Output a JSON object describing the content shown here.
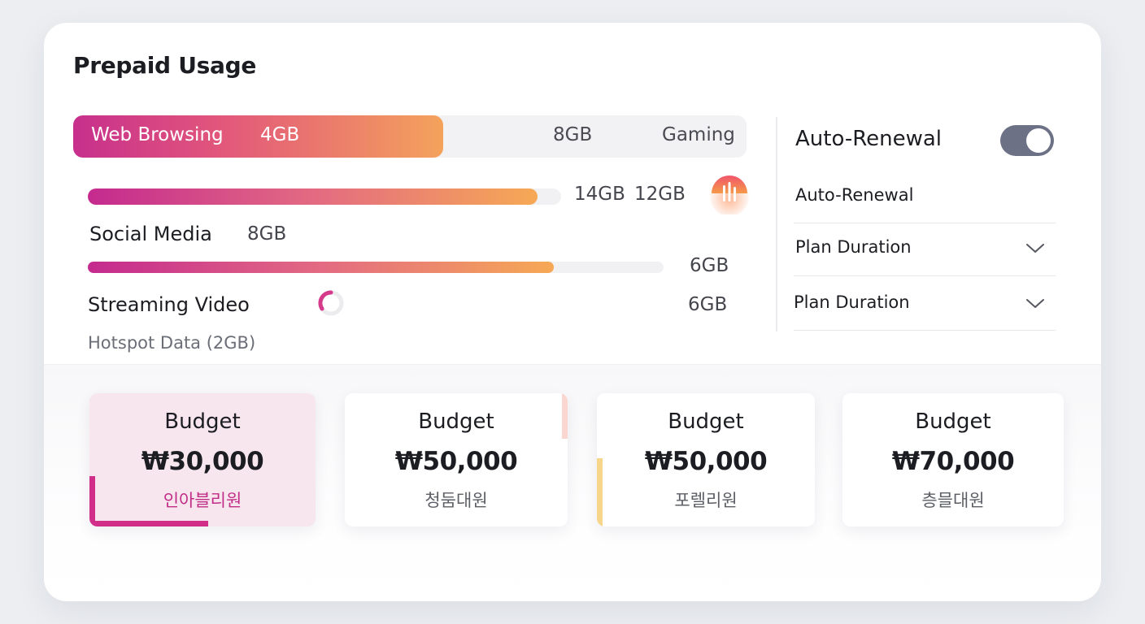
{
  "title": "Prepaid Usage",
  "usage": {
    "top_bar": {
      "label": "Web Browsing",
      "used": "4GB",
      "mid": "8GB",
      "right_label": "Gaming",
      "fill_fraction": 0.55
    },
    "bar2": {
      "values": [
        "14GB",
        "12GB"
      ],
      "fill_fraction": 0.95
    },
    "social": {
      "label": "Social Media",
      "value": "8GB"
    },
    "bar3": {
      "value": "6GB",
      "fill_fraction": 0.81
    },
    "streaming": {
      "label": "Streaming Video",
      "value": "6GB"
    },
    "hotspot": "Hotspot Data (2GB)"
  },
  "settings": {
    "auto_renewal_title": "Auto-Renewal",
    "auto_renewal_on": true,
    "auto_renewal_sub": "Auto-Renewal",
    "dropdowns": [
      "Plan Duration",
      "Plan Duration"
    ]
  },
  "budgets": [
    {
      "label": "Budget",
      "price": "₩30,000",
      "sub": "인아블리원",
      "selected": true
    },
    {
      "label": "Budget",
      "price": "₩50,000",
      "sub": "청둠대원",
      "selected": false
    },
    {
      "label": "Budget",
      "price": "₩50,000",
      "sub": "포렐리원",
      "selected": false
    },
    {
      "label": "Budget",
      "price": "₩70,000",
      "sub": "층믈대원",
      "selected": false
    }
  ],
  "colors": {
    "gradient_start": "#c72f8c",
    "gradient_end": "#f4a25c",
    "toggle": "#6c7186",
    "accent": "#d12e8a"
  }
}
